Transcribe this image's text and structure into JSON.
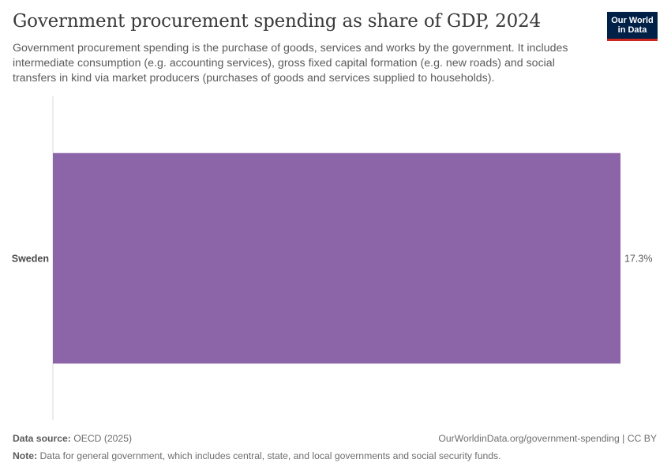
{
  "header": {
    "title": "Government procurement spending as share of GDP, 2024",
    "subtitle": "Government procurement spending is the purchase of goods, services and works by the government. It includes intermediate consumption (e.g. accounting services), gross fixed capital formation (e.g. new roads) and social transfers in kind via market producers (purchases of goods and services supplied to households).",
    "logo_text": "Our World in Data"
  },
  "footer": {
    "source_label": "Data source:",
    "source_value": "OECD (2025)",
    "url": "OurWorldinData.org/government-spending | CC BY",
    "note_label": "Note:",
    "note_value": "Data for general government, which includes central, state, and local governments and social security funds."
  },
  "colors": {
    "bar": "#8c65a8",
    "axis": "#d9d9d9"
  },
  "chart_data": {
    "type": "bar",
    "orientation": "horizontal",
    "title": "Government procurement spending as share of GDP, 2024",
    "categories": [
      "Sweden"
    ],
    "values": [
      17.3
    ],
    "value_labels": [
      "17.3%"
    ],
    "unit": "%",
    "xlim": [
      0,
      17.3
    ],
    "xlabel": "",
    "ylabel": ""
  }
}
